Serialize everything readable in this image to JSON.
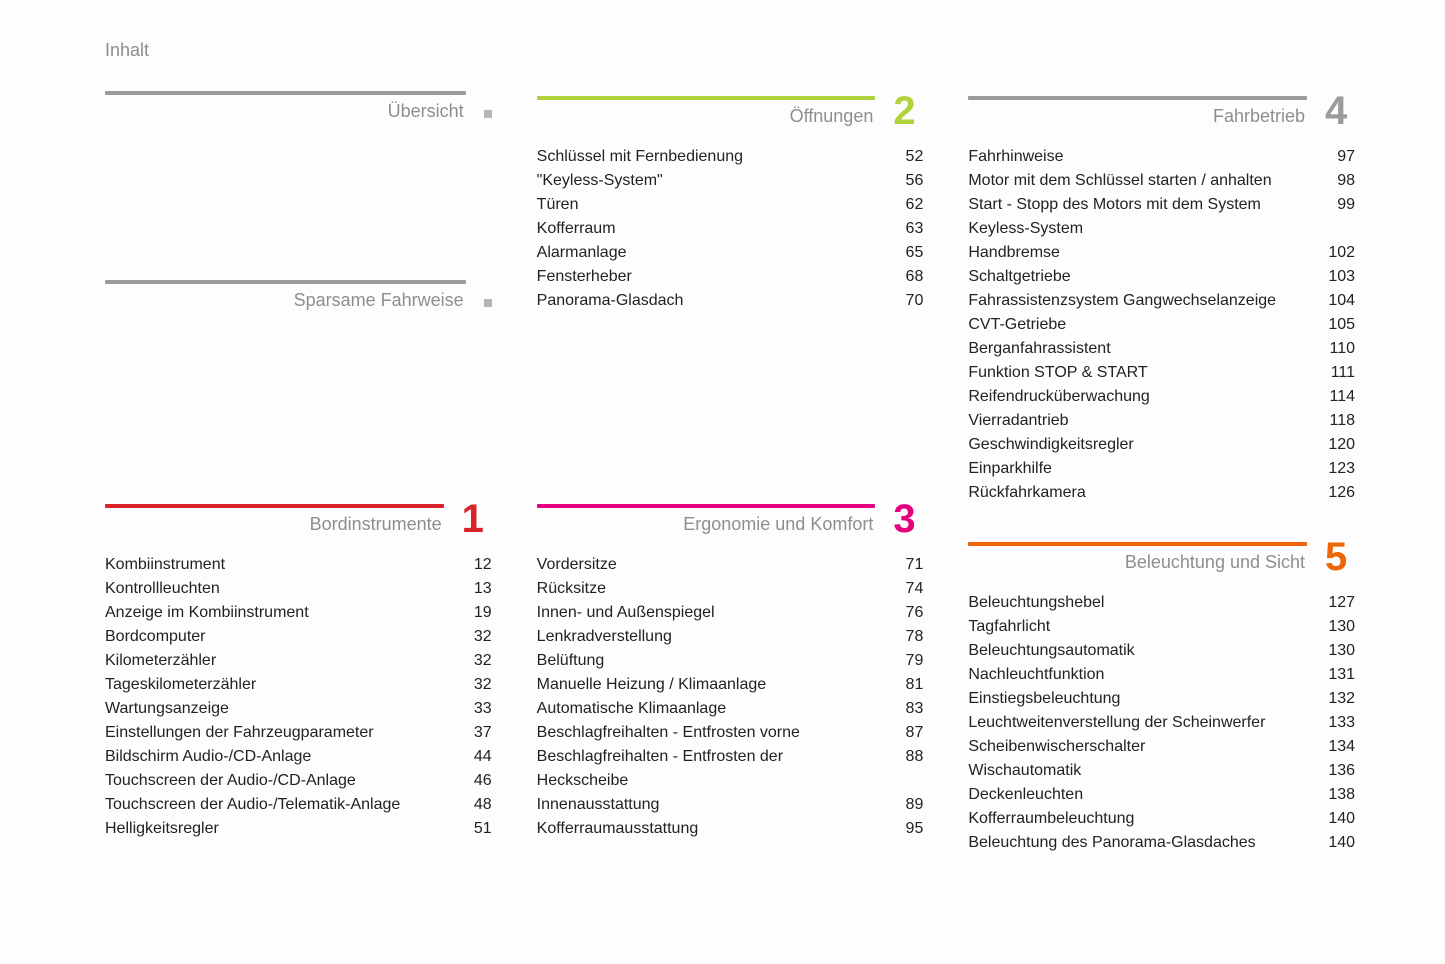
{
  "page_title": "Inhalt",
  "colors": {
    "gray": "#9b9b9b",
    "red": "#d8232a",
    "lime": "#b0d23c",
    "magenta": "#e6007e",
    "darkgray": "#8e8e8e",
    "orange": "#ec6608"
  },
  "columns": [
    {
      "sections": [
        {
          "title": "Übersicht",
          "bar_color": "#9b9b9b",
          "number": ".",
          "number_color": "#9b9b9b",
          "is_dot": true,
          "entries": []
        },
        {
          "title": "Sparsame Fahrweise",
          "bar_color": "#9b9b9b",
          "number": ".",
          "number_color": "#9b9b9b",
          "is_dot": true,
          "spacer_before": 130,
          "entries": []
        },
        {
          "title": "Bordinstrumente",
          "bar_color": "#d8232a",
          "number": "1",
          "number_color": "#d8232a",
          "spacer_before": 160,
          "entries": [
            {
              "label": "Kombiinstrument",
              "page": "12"
            },
            {
              "label": "Kontrollleuchten",
              "page": "13"
            },
            {
              "label": "Anzeige im Kombiinstrument",
              "page": "19"
            },
            {
              "label": "Bordcomputer",
              "page": "32"
            },
            {
              "label": "Kilometerzähler",
              "page": "32"
            },
            {
              "label": "Tageskilometerzähler",
              "page": "32"
            },
            {
              "label": "Wartungsanzeige",
              "page": "33"
            },
            {
              "label": "Einstellungen der Fahrzeugparameter",
              "page": "37"
            },
            {
              "label": "Bildschirm Audio-/CD-Anlage",
              "page": "44"
            },
            {
              "label": "Touchscreen der Audio-/CD-Anlage",
              "page": "46"
            },
            {
              "label": "Touchscreen der Audio-/Telematik-Anlage",
              "page": "48"
            },
            {
              "label": "Helligkeitsregler",
              "page": "51"
            }
          ]
        }
      ]
    },
    {
      "sections": [
        {
          "title": "Öffnungen",
          "bar_color": "#b0d23c",
          "number": "2",
          "number_color": "#b0d23c",
          "entries": [
            {
              "label": "Schlüssel mit Fernbedienung",
              "page": "52"
            },
            {
              "label": "\"Keyless-System\"",
              "page": "56"
            },
            {
              "label": "Türen",
              "page": "62"
            },
            {
              "label": "Kofferraum",
              "page": "63"
            },
            {
              "label": "Alarmanlage",
              "page": "65"
            },
            {
              "label": "Fensterheber",
              "page": "68"
            },
            {
              "label": "Panorama-Glasdach",
              "page": "70"
            }
          ]
        },
        {
          "title": "Ergonomie und Komfort",
          "bar_color": "#e6007e",
          "number": "3",
          "number_color": "#e6007e",
          "spacer_before": 158,
          "entries": [
            {
              "label": "Vordersitze",
              "page": "71"
            },
            {
              "label": "Rücksitze",
              "page": "74"
            },
            {
              "label": "Innen- und Außenspiegel",
              "page": "76"
            },
            {
              "label": "Lenkradverstellung",
              "page": "78"
            },
            {
              "label": "Belüftung",
              "page": "79"
            },
            {
              "label": "Manuelle Heizung / Klimaanlage",
              "page": "81"
            },
            {
              "label": "Automatische Klimaanlage",
              "page": "83"
            },
            {
              "label": "Beschlagfreihalten - Entfrosten vorne",
              "page": "87"
            },
            {
              "label": "Beschlagfreihalten - Entfrosten der Heckscheibe",
              "page": "88"
            },
            {
              "label": "Innenausstattung",
              "page": "89"
            },
            {
              "label": "Kofferraumausstattung",
              "page": "95"
            }
          ]
        }
      ]
    },
    {
      "sections": [
        {
          "title": "Fahrbetrieb",
          "bar_color": "#9b9b9b",
          "number": "4",
          "number_color": "#9b9b9b",
          "entries": [
            {
              "label": "Fahrhinweise",
              "page": "97"
            },
            {
              "label": "Motor mit dem Schlüssel starten / anhalten",
              "page": "98"
            },
            {
              "label": "Start - Stopp des Motors mit dem System Keyless-System",
              "page": "99"
            },
            {
              "label": "Handbremse",
              "page": "102"
            },
            {
              "label": "Schaltgetriebe",
              "page": "103"
            },
            {
              "label": "Fahrassistenzsystem Gangwechselanzeige",
              "page": "104"
            },
            {
              "label": "CVT-Getriebe",
              "page": "105"
            },
            {
              "label": "Berganfahrassistent",
              "page": "110"
            },
            {
              "label": "Funktion STOP & START",
              "page": "111"
            },
            {
              "label": "Reifendrucküberwachung",
              "page": "114"
            },
            {
              "label": "Vierradantrieb",
              "page": "118"
            },
            {
              "label": "Geschwindigkeitsregler",
              "page": "120"
            },
            {
              "label": "Einparkhilfe",
              "page": "123"
            },
            {
              "label": "Rückfahrkamera",
              "page": "126"
            }
          ]
        },
        {
          "title": "Beleuchtung und Sicht",
          "bar_color": "#ec6608",
          "number": "5",
          "number_color": "#ec6608",
          "spacer_before": 4,
          "entries": [
            {
              "label": "Beleuchtungshebel",
              "page": "127"
            },
            {
              "label": "Tagfahrlicht",
              "page": "130"
            },
            {
              "label": "Beleuchtungsautomatik",
              "page": "130"
            },
            {
              "label": "Nachleuchtfunktion",
              "page": "131"
            },
            {
              "label": "Einstiegsbeleuchtung",
              "page": "132"
            },
            {
              "label": "Leuchtweitenverstellung der Scheinwerfer",
              "page": "133"
            },
            {
              "label": "Scheibenwischerschalter",
              "page": "134"
            },
            {
              "label": "Wischautomatik",
              "page": "136"
            },
            {
              "label": "Deckenleuchten",
              "page": "138"
            },
            {
              "label": "Kofferraumbeleuchtung",
              "page": "140"
            },
            {
              "label": "Beleuchtung des Panorama-Glasdaches",
              "page": "140"
            }
          ]
        }
      ]
    }
  ]
}
